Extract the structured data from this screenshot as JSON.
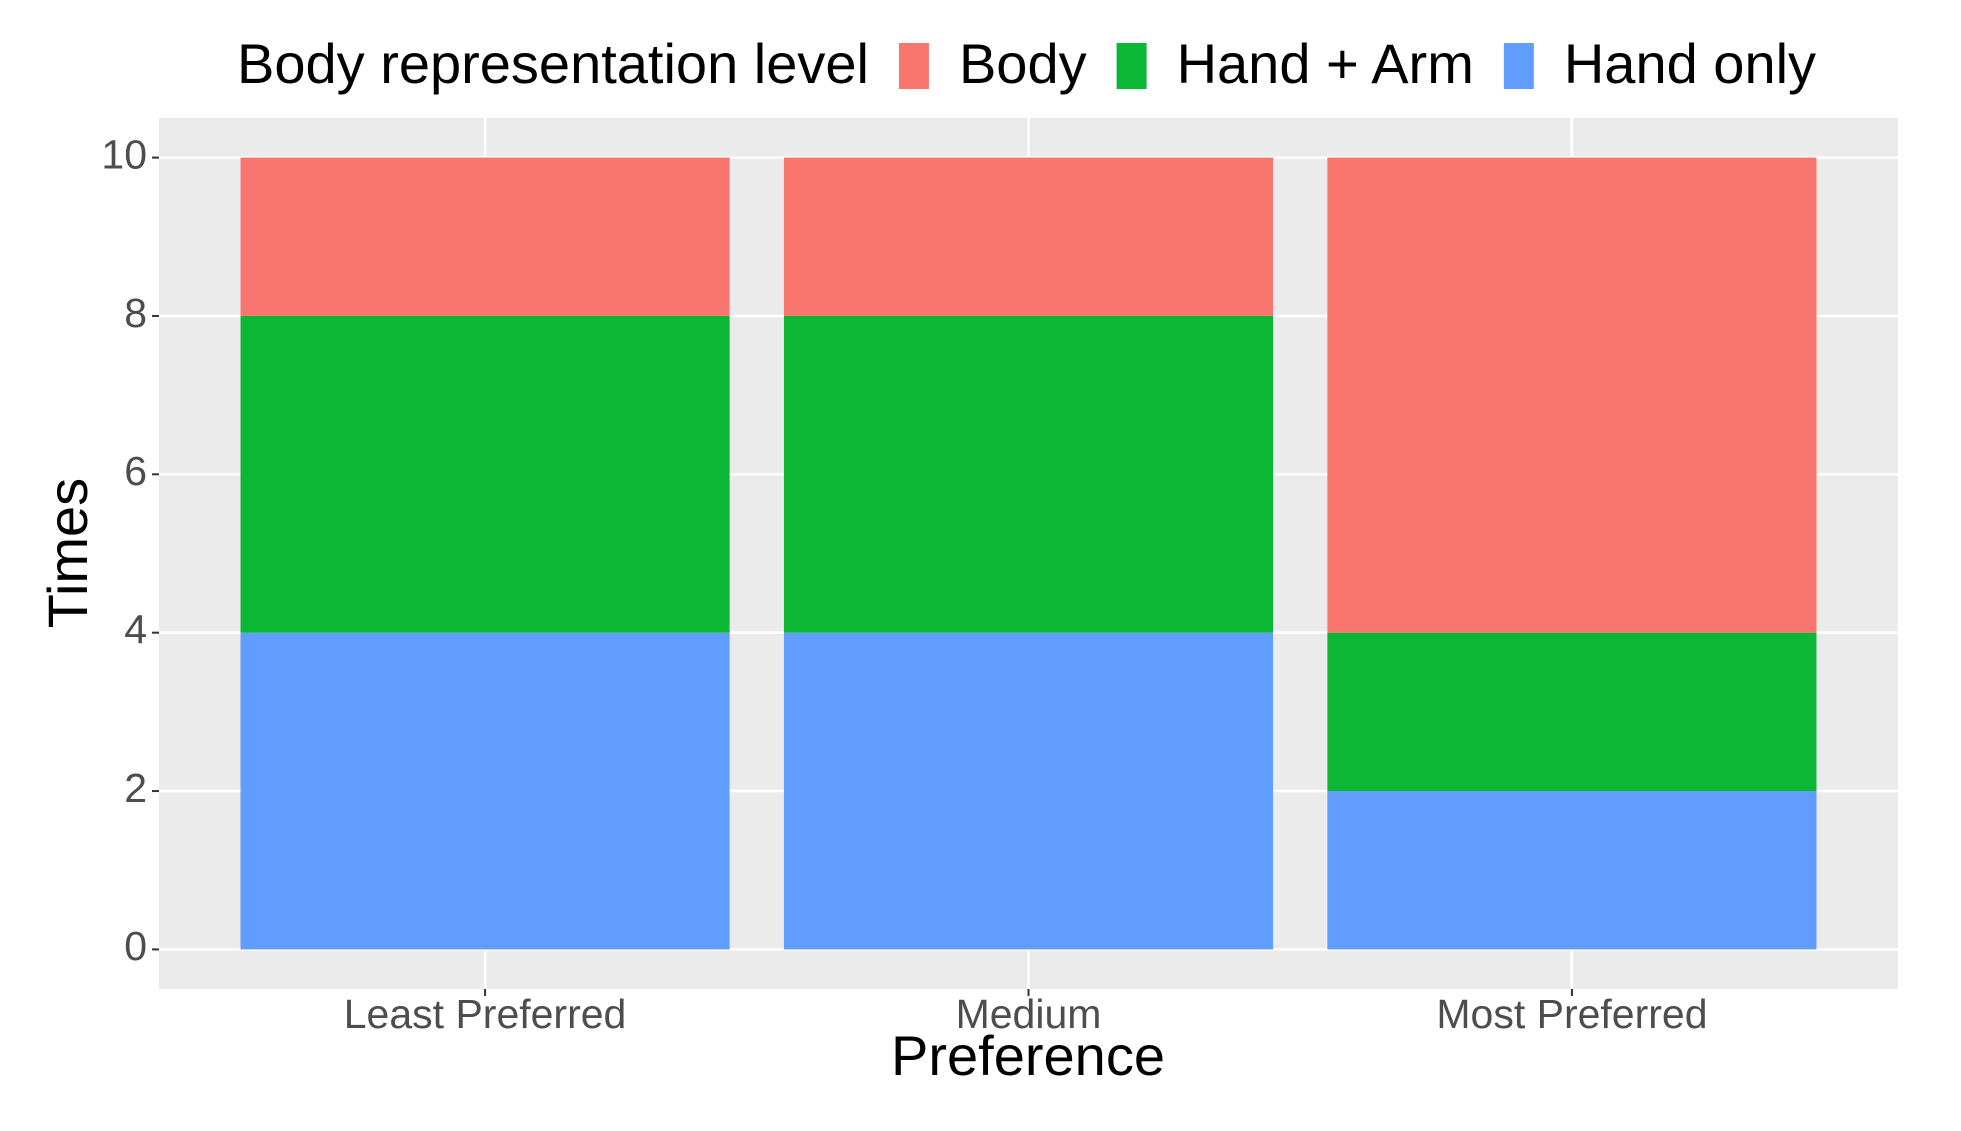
{
  "chart_data": {
    "type": "stacked_bar",
    "legend_title": "Body representation level",
    "legend_position": "top",
    "x_label": "Preference",
    "y_label": "Times",
    "categories": [
      "Least Preferred",
      "Medium",
      "Most Preferred"
    ],
    "series": [
      {
        "name": "Body",
        "color": "#f8766d",
        "values": [
          2,
          2,
          6
        ]
      },
      {
        "name": "Hand + Arm",
        "color": "#0cb735",
        "values": [
          4,
          4,
          2
        ]
      },
      {
        "name": "Hand only",
        "color": "#619cff",
        "values": [
          4,
          4,
          2
        ]
      }
    ],
    "ylim": [
      -0.5,
      10.5
    ],
    "yticks": [
      0,
      2,
      4,
      6,
      8,
      10
    ],
    "grid": true
  }
}
